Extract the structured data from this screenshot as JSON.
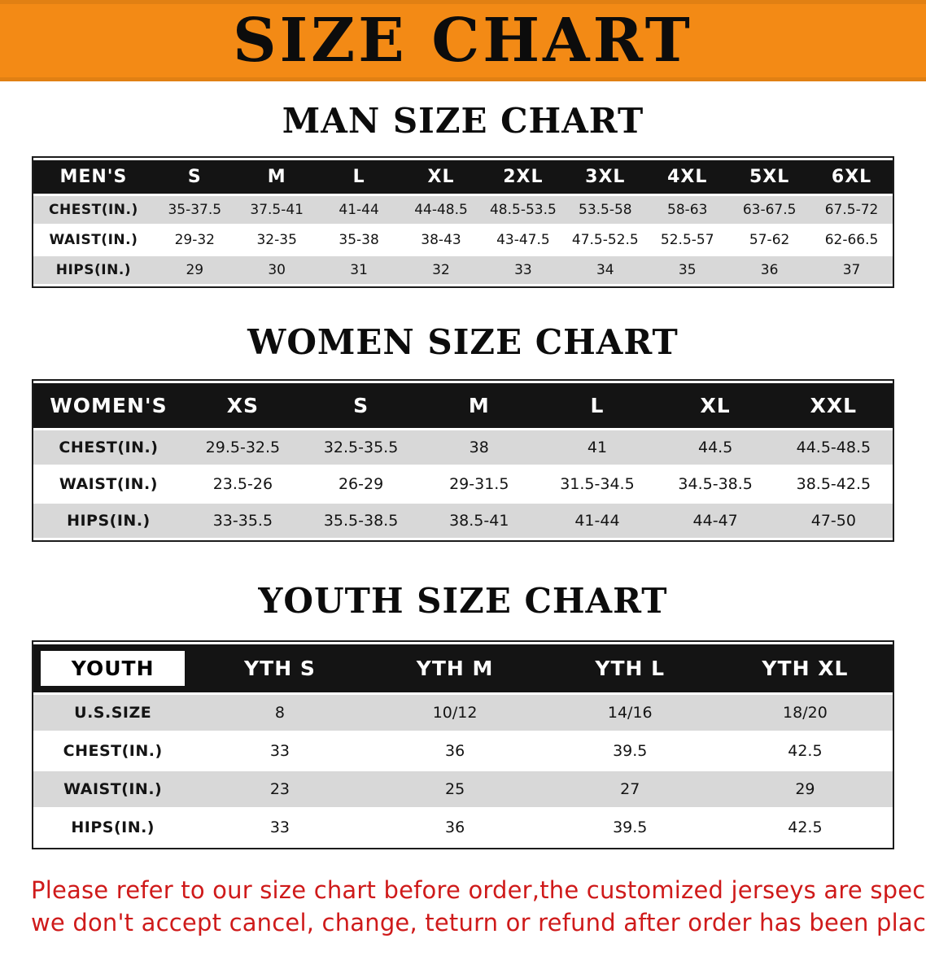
{
  "banner": {
    "title": "SIZE CHART"
  },
  "men": {
    "heading": "MAN SIZE CHART",
    "header": [
      "MEN'S",
      "S",
      "M",
      "L",
      "XL",
      "2XL",
      "3XL",
      "4XL",
      "5XL",
      "6XL"
    ],
    "rows": [
      [
        "CHEST(IN.)",
        "35-37.5",
        "37.5-41",
        "41-44",
        "44-48.5",
        "48.5-53.5",
        "53.5-58",
        "58-63",
        "63-67.5",
        "67.5-72"
      ],
      [
        "WAIST(IN.)",
        "29-32",
        "32-35",
        "35-38",
        "38-43",
        "43-47.5",
        "47.5-52.5",
        "52.5-57",
        "57-62",
        "62-66.5"
      ],
      [
        "HIPS(IN.)",
        "29",
        "30",
        "31",
        "32",
        "33",
        "34",
        "35",
        "36",
        "37"
      ]
    ]
  },
  "women": {
    "heading": "WOMEN SIZE CHART",
    "header": [
      "WOMEN'S",
      "XS",
      "S",
      "M",
      "L",
      "XL",
      "XXL"
    ],
    "rows": [
      [
        "CHEST(IN.)",
        "29.5-32.5",
        "32.5-35.5",
        "38",
        "41",
        "44.5",
        "44.5-48.5"
      ],
      [
        "WAIST(IN.)",
        "23.5-26",
        "26-29",
        "29-31.5",
        "31.5-34.5",
        "34.5-38.5",
        "38.5-42.5"
      ],
      [
        "HIPS(IN.)",
        "33-35.5",
        "35.5-38.5",
        "38.5-41",
        "41-44",
        "44-47",
        "47-50"
      ]
    ]
  },
  "youth": {
    "heading": "YOUTH SIZE CHART",
    "header": [
      "YOUTH",
      "YTH S",
      "YTH M",
      "YTH L",
      "YTH XL"
    ],
    "rows": [
      [
        "U.S.SIZE",
        "8",
        "10/12",
        "14/16",
        "18/20"
      ],
      [
        "CHEST(IN.)",
        "33",
        "36",
        "39.5",
        "42.5"
      ],
      [
        "WAIST(IN.)",
        "23",
        "25",
        "27",
        "29"
      ],
      [
        "HIPS(IN.)",
        "33",
        "36",
        "39.5",
        "42.5"
      ]
    ]
  },
  "disclaimer": {
    "lines": [
      "Please refer to our size chart before order,the customized jerseys are special products,",
      "we don't accept cancel, change, teturn or refund after order has been placed!"
    ]
  },
  "colors": {
    "banner_bg": "#f38a15",
    "header_bg": "#141414",
    "row_alt": "#d8d8d8",
    "disclaimer_red": "#cf1a1a"
  }
}
